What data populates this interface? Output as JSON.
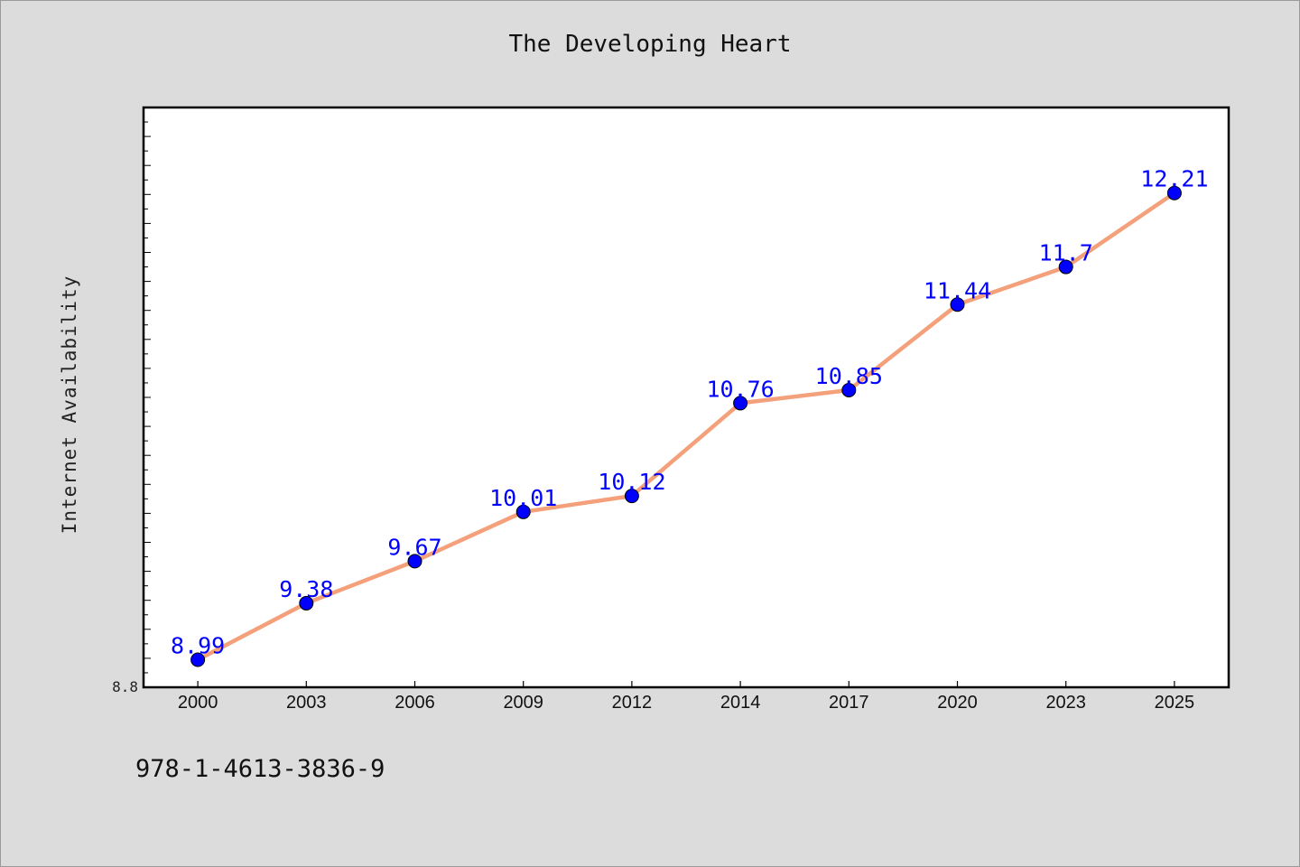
{
  "chart_data": {
    "type": "line",
    "title": "The Developing Heart",
    "xlabel": "",
    "ylabel": "Internet Availability",
    "categories": [
      "2000",
      "2003",
      "2006",
      "2009",
      "2012",
      "2014",
      "2017",
      "2020",
      "2023",
      "2025"
    ],
    "series": [
      {
        "values": [
          8.99,
          9.38,
          9.67,
          10.01,
          10.12,
          10.76,
          10.85,
          11.44,
          11.7,
          12.21
        ],
        "labels": [
          "8.99",
          "9.38",
          "9.67",
          "10.01",
          "10.12",
          "10.76",
          "10.85",
          "11.44",
          "11.7",
          "12.21"
        ],
        "line_color": "#f4a07a",
        "marker_color": "#0000ff",
        "label_color": "#0000ff"
      }
    ],
    "ylim": [
      8.8,
      12.8
    ],
    "y_tick_labels": [
      "8.8"
    ],
    "grid": false,
    "legend": "none"
  },
  "footer": {
    "code": "978-1-4613-3836-9"
  }
}
